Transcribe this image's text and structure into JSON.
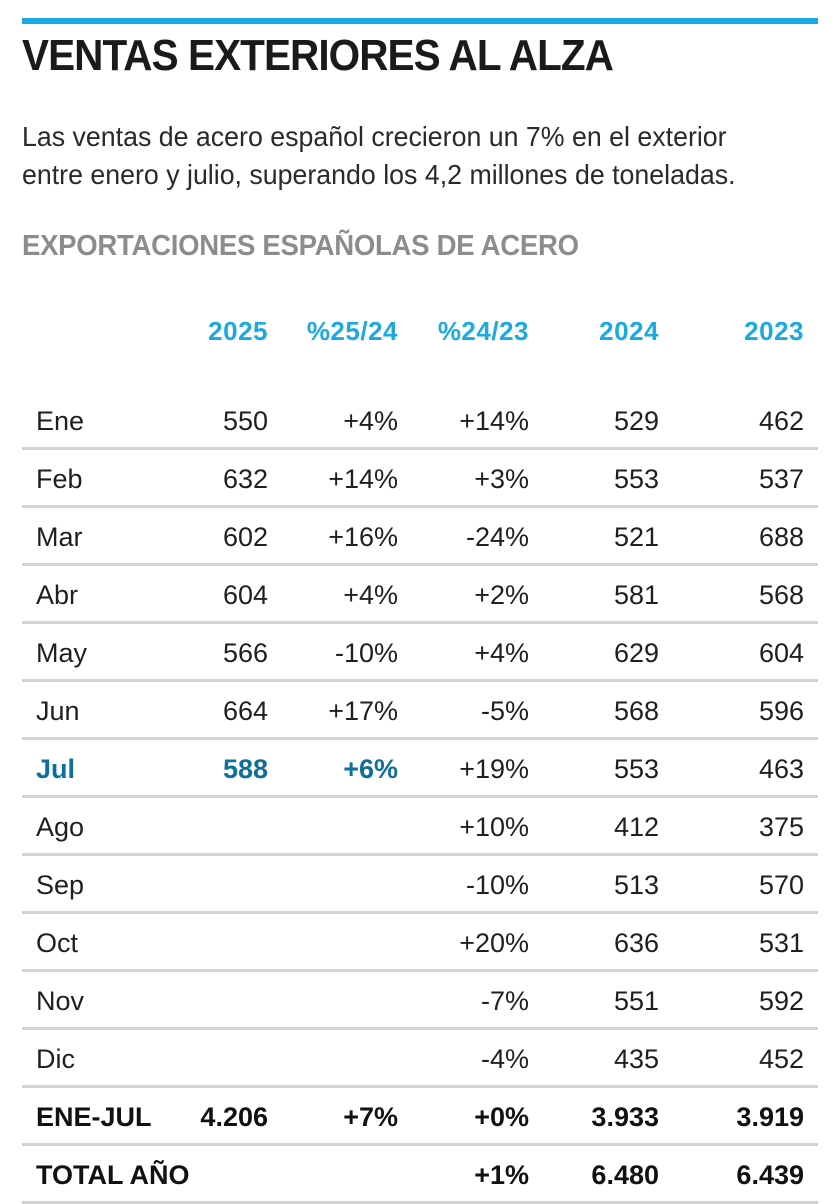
{
  "accent_color": "#1aa9e0",
  "highlight_color": "#0e6f9b",
  "headline": "VENTAS EXTERIORES AL ALZA",
  "deck": {
    "line1": "Las ventas de acero español crecieron un 7% en el exterior",
    "line2": "entre enero y julio, superando los 4,2 millones de toneladas."
  },
  "section_title": "EXPORTACIONES ESPAÑOLAS DE ACERO",
  "table": {
    "columns": [
      "",
      "2025",
      "%25/24",
      "%24/23",
      "2024",
      "2023"
    ],
    "rows": [
      [
        "Ene",
        "550",
        "+4%",
        "+14%",
        "529",
        "462"
      ],
      [
        "Feb",
        "632",
        "+14%",
        "+3%",
        "553",
        "537"
      ],
      [
        "Mar",
        "602",
        "+16%",
        "-24%",
        "521",
        "688"
      ],
      [
        "Abr",
        "604",
        "+4%",
        "+2%",
        "581",
        "568"
      ],
      [
        "May",
        "566",
        "-10%",
        "+4%",
        "629",
        "604"
      ],
      [
        "Jun",
        "664",
        "+17%",
        "-5%",
        "568",
        "596"
      ],
      [
        "Jul",
        "588",
        "+6%",
        "+19%",
        "553",
        "463"
      ],
      [
        "Ago",
        "",
        "",
        "+10%",
        "412",
        "375"
      ],
      [
        "Sep",
        "",
        "",
        "-10%",
        "513",
        "570"
      ],
      [
        "Oct",
        "",
        "",
        "+20%",
        "636",
        "531"
      ],
      [
        "Nov",
        "",
        "",
        "-7%",
        "551",
        "592"
      ],
      [
        "Dic",
        "",
        "",
        "-4%",
        "435",
        "452"
      ],
      [
        "ENE-JUL",
        "4.206",
        "+7%",
        "+0%",
        "3.933",
        "3.919"
      ],
      [
        "TOTAL AÑO",
        "",
        "",
        "+1%",
        "6.480",
        "6.439"
      ]
    ]
  }
}
